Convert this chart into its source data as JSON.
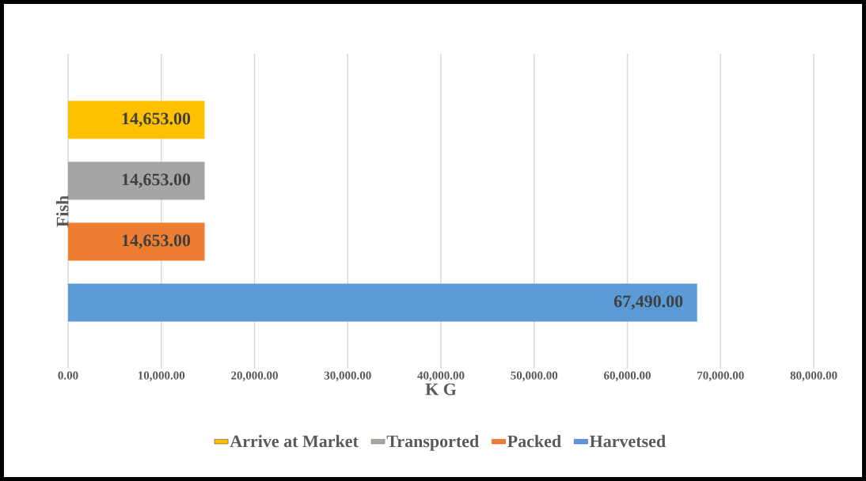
{
  "chart_data": {
    "type": "bar",
    "orientation": "horizontal",
    "xlabel": "K G",
    "ylabel": "Fish",
    "categories": [
      null
    ],
    "series": [
      {
        "name": "Harvetsed",
        "color": "#5b9bd5",
        "values": [
          67490
        ],
        "value_labels": [
          "67,490.00"
        ]
      },
      {
        "name": "Packed",
        "color": "#ed7d31",
        "values": [
          14653
        ],
        "value_labels": [
          "14,653.00"
        ]
      },
      {
        "name": "Transported",
        "color": "#a5a5a5",
        "values": [
          14653
        ],
        "value_labels": [
          "14,653.00"
        ]
      },
      {
        "name": "Arrive at Market",
        "color": "#ffc000",
        "values": [
          14653
        ],
        "value_labels": [
          "14,653.00"
        ]
      }
    ],
    "xlim": [
      0,
      80000
    ],
    "xticks": [
      {
        "value": 0,
        "label": "0.00"
      },
      {
        "value": 10000,
        "label": "10,000.00"
      },
      {
        "value": 20000,
        "label": "20,000.00"
      },
      {
        "value": 30000,
        "label": "30,000.00"
      },
      {
        "value": 40000,
        "label": "40,000.00"
      },
      {
        "value": 50000,
        "label": "50,000.00"
      },
      {
        "value": 60000,
        "label": "60,000.00"
      },
      {
        "value": 70000,
        "label": "70,000.00"
      },
      {
        "value": 80000,
        "label": "80,000.00"
      }
    ],
    "grid": "x",
    "legend": "bottom"
  }
}
